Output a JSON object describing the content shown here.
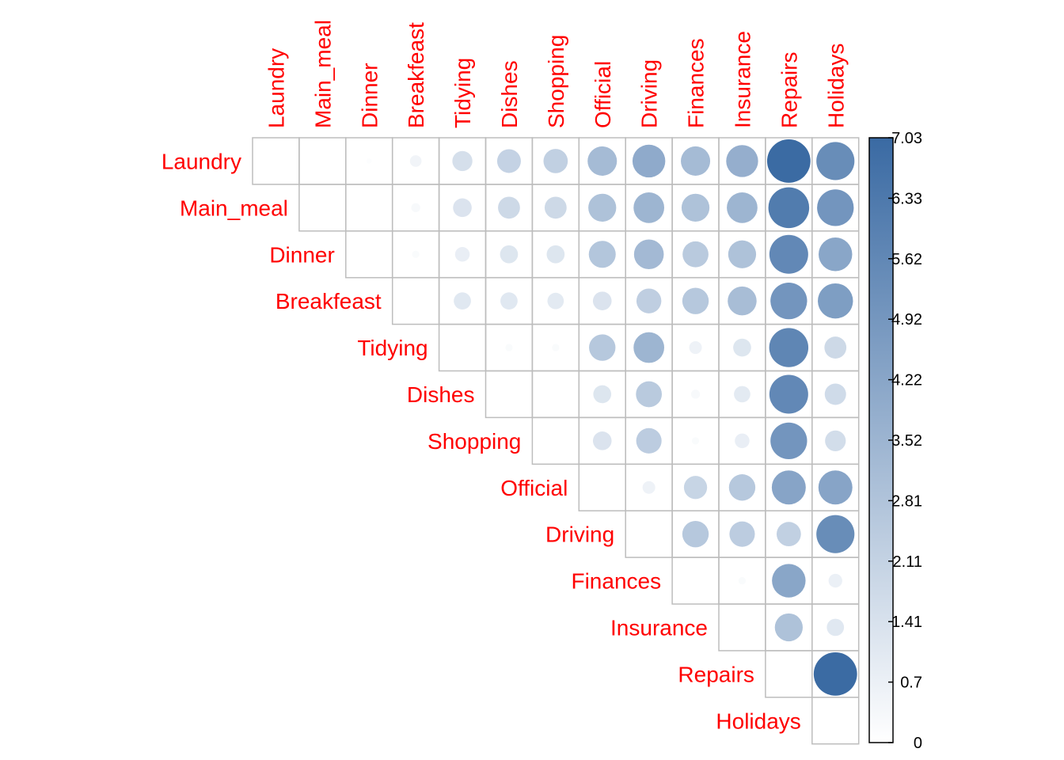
{
  "chart_data": {
    "type": "heatmap",
    "layout": "upper-triangle",
    "marker": "circle",
    "title": "",
    "labels": [
      "Laundry",
      "Main_meal",
      "Dinner",
      "Breakfeast",
      "Tidying",
      "Dishes",
      "Shopping",
      "Official",
      "Driving",
      "Finances",
      "Insurance",
      "Repairs",
      "Holidays"
    ],
    "values": [
      [
        0,
        0,
        0.1,
        0.5,
        1.5,
        2.1,
        2.2,
        3.2,
        4.0,
        3.2,
        3.8,
        7.0,
        5.4
      ],
      [
        0,
        0,
        0,
        0.3,
        1.3,
        1.8,
        1.8,
        2.9,
        3.5,
        2.9,
        3.5,
        6.2,
        5.0
      ],
      [
        0,
        0,
        0,
        0.2,
        0.8,
        1.2,
        1.2,
        2.7,
        3.3,
        2.5,
        2.9,
        5.6,
        4.2
      ],
      [
        0,
        0,
        0,
        0,
        1.1,
        1.1,
        1.0,
        1.3,
        2.3,
        2.6,
        3.1,
        5.0,
        4.6
      ],
      [
        0,
        0,
        0,
        0,
        0,
        0.2,
        0.2,
        2.6,
        3.5,
        0.6,
        1.2,
        5.7,
        1.8
      ],
      [
        0,
        0,
        0,
        0,
        0,
        0,
        0,
        1.2,
        2.5,
        0.3,
        1.0,
        5.6,
        1.7
      ],
      [
        0,
        0,
        0,
        0,
        0,
        0,
        0,
        1.3,
        2.4,
        0.2,
        0.8,
        5.0,
        1.6
      ],
      [
        0,
        0,
        0,
        0,
        0,
        0,
        0,
        0,
        0.6,
        2.0,
        2.6,
        4.3,
        4.3
      ],
      [
        0,
        0,
        0,
        0,
        0,
        0,
        0,
        0,
        0,
        2.6,
        2.4,
        2.2,
        5.4
      ],
      [
        0,
        0,
        0,
        0,
        0,
        0,
        0,
        0,
        0,
        0,
        0.2,
        4.2,
        0.7
      ],
      [
        0,
        0,
        0,
        0,
        0,
        0,
        0,
        0,
        0,
        0,
        0,
        2.9,
        1.1
      ],
      [
        0,
        0,
        0,
        0,
        0,
        0,
        0,
        0,
        0,
        0,
        0,
        0,
        7.0
      ],
      [
        0,
        0,
        0,
        0,
        0,
        0,
        0,
        0,
        0,
        0,
        0,
        0,
        0
      ]
    ],
    "color_range": [
      0,
      7.03
    ],
    "legend": {
      "placement": "right",
      "ticks": [
        "7.03",
        "6.33",
        "5.62",
        "4.92",
        "4.22",
        "3.52",
        "2.81",
        "2.11",
        "1.41",
        "0.7",
        "0"
      ]
    },
    "colors": {
      "label_color": "#FF0000",
      "grid_color": "#BDBDBD",
      "low_color": "#FFFFFF",
      "high_color": "#3A6AA3"
    }
  }
}
